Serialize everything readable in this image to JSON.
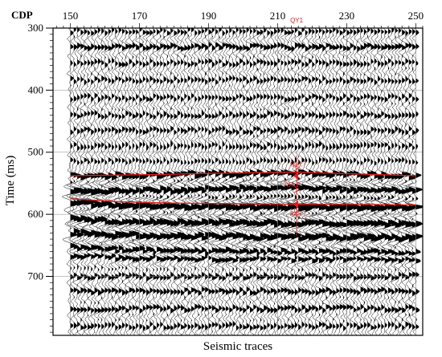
{
  "chart_data": {
    "type": "seismic-section",
    "x_axis_name": "CDP",
    "xlabel": "Seismic traces",
    "ylabel": "Time (ms)",
    "xlim": [
      145,
      252
    ],
    "ylim": [
      300,
      795
    ],
    "x_ticks": [
      150,
      170,
      190,
      210,
      230,
      250
    ],
    "y_ticks": [
      300,
      400,
      500,
      600,
      700
    ],
    "trace_start": 150,
    "trace_end": 250,
    "grid": true,
    "well": {
      "name": "QY1",
      "cdp": 215.5,
      "marker_color": "#e0201b"
    },
    "horizons": [
      {
        "color": "#e0201b",
        "points": [
          [
            150,
            538
          ],
          [
            160,
            537
          ],
          [
            175,
            536
          ],
          [
            190,
            534
          ],
          [
            205,
            533
          ],
          [
            215,
            532
          ],
          [
            250,
            538
          ]
        ]
      },
      {
        "color": "#e0201b",
        "points": [
          [
            150,
            575
          ],
          [
            165,
            580
          ],
          [
            180,
            582
          ],
          [
            200,
            583
          ],
          [
            215,
            584
          ],
          [
            235,
            584
          ],
          [
            250,
            585
          ]
        ]
      }
    ],
    "velocity_labels": [
      {
        "text": "630.7",
        "cdp": 216,
        "time": 523
      },
      {
        "text": "734.1",
        "cdp": 214,
        "time": 556
      },
      {
        "text": "848.7",
        "cdp": 216,
        "time": 603
      }
    ]
  }
}
